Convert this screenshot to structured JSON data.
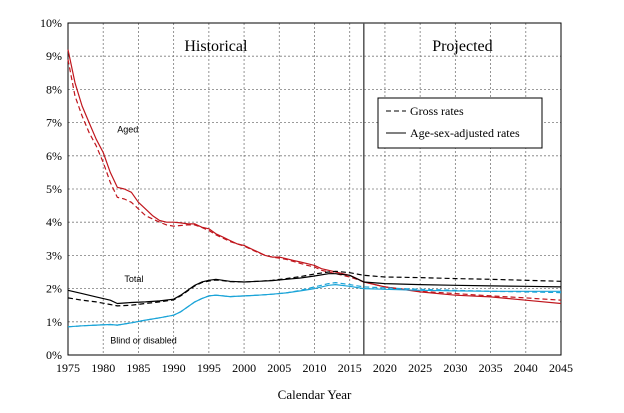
{
  "chart_data": {
    "type": "line",
    "title": "",
    "xlabel": "Calendar Year",
    "ylabel": "",
    "xlim": [
      1975,
      2045
    ],
    "ylim": [
      0,
      10
    ],
    "x_ticks": [
      "1975",
      "1980",
      "1985",
      "1990",
      "1995",
      "2000",
      "2005",
      "2010",
      "2015",
      "2020",
      "2025",
      "2030",
      "2035",
      "2040",
      "2045"
    ],
    "y_ticks": [
      "0%",
      "1%",
      "2%",
      "3%",
      "4%",
      "5%",
      "6%",
      "7%",
      "8%",
      "9%",
      "10%"
    ],
    "grid": true,
    "divider_year": 2017,
    "sections": [
      "Historical",
      "Projected"
    ],
    "legend": {
      "position": "top-right",
      "entries": [
        {
          "label": "Gross rates",
          "style": "dashed"
        },
        {
          "label": "Age-sex-adjusted rates",
          "style": "solid"
        }
      ]
    },
    "annotations": [
      {
        "text": "Aged",
        "x": 1982,
        "y": 6.7
      },
      {
        "text": "Total",
        "x": 1983,
        "y": 2.2
      },
      {
        "text": "Blind or disabled",
        "x": 1981,
        "y": 0.35
      }
    ],
    "colors": {
      "aged": "#c0161d",
      "total": "#000000",
      "blind_disabled": "#1ba4d8"
    },
    "series": [
      {
        "name": "Aged",
        "variant": "Age-sex-adjusted rates",
        "style": "solid",
        "color_key": "aged",
        "x": [
          1975,
          1976,
          1977,
          1978,
          1979,
          1980,
          1981,
          1982,
          1983,
          1984,
          1985,
          1986,
          1987,
          1988,
          1989,
          1990,
          1991,
          1992,
          1993,
          1994,
          1995,
          1996,
          1997,
          1998,
          1999,
          2000,
          2001,
          2002,
          2003,
          2004,
          2005,
          2006,
          2007,
          2008,
          2009,
          2010,
          2011,
          2012,
          2013,
          2014,
          2015,
          2016,
          2017,
          2020,
          2025,
          2030,
          2035,
          2040,
          2045
        ],
        "y": [
          9.2,
          8.2,
          7.5,
          7.0,
          6.5,
          6.1,
          5.5,
          5.05,
          5.0,
          4.9,
          4.6,
          4.4,
          4.2,
          4.05,
          4.0,
          4.0,
          3.98,
          3.95,
          3.95,
          3.85,
          3.8,
          3.65,
          3.55,
          3.45,
          3.35,
          3.3,
          3.2,
          3.1,
          3.0,
          2.95,
          2.95,
          2.9,
          2.85,
          2.8,
          2.75,
          2.7,
          2.6,
          2.55,
          2.5,
          2.45,
          2.4,
          2.3,
          2.2,
          2.05,
          1.9,
          1.8,
          1.75,
          1.65,
          1.55
        ]
      },
      {
        "name": "Aged",
        "variant": "Gross rates",
        "style": "dashed",
        "color_key": "aged",
        "x": [
          1975,
          1976,
          1977,
          1978,
          1979,
          1980,
          1981,
          1982,
          1983,
          1984,
          1985,
          1986,
          1987,
          1988,
          1989,
          1990,
          1991,
          1992,
          1993,
          1994,
          1995,
          1996,
          1997,
          1998,
          1999,
          2000,
          2001,
          2002,
          2003,
          2004,
          2005,
          2006,
          2007,
          2008,
          2009,
          2010,
          2011,
          2012,
          2013,
          2014,
          2015,
          2016,
          2017,
          2020,
          2025,
          2030,
          2035,
          2040,
          2045
        ],
        "y": [
          8.9,
          7.8,
          7.2,
          6.7,
          6.3,
          5.8,
          5.2,
          4.75,
          4.7,
          4.6,
          4.4,
          4.2,
          4.1,
          4.0,
          3.92,
          3.88,
          3.9,
          3.92,
          3.92,
          3.84,
          3.75,
          3.62,
          3.52,
          3.42,
          3.35,
          3.28,
          3.18,
          3.08,
          3.0,
          2.95,
          2.92,
          2.88,
          2.82,
          2.76,
          2.7,
          2.65,
          2.55,
          2.5,
          2.45,
          2.4,
          2.35,
          2.28,
          2.2,
          2.05,
          1.92,
          1.85,
          1.78,
          1.72,
          1.65
        ]
      },
      {
        "name": "Total",
        "variant": "Age-sex-adjusted rates",
        "style": "solid",
        "color_key": "total",
        "x": [
          1975,
          1977,
          1979,
          1981,
          1982,
          1984,
          1986,
          1988,
          1990,
          1991,
          1992,
          1993,
          1994,
          1995,
          1996,
          1997,
          1998,
          2000,
          2002,
          2004,
          2006,
          2008,
          2010,
          2012,
          2013,
          2015,
          2017,
          2020,
          2025,
          2030,
          2035,
          2040,
          2045
        ],
        "y": [
          1.95,
          1.85,
          1.75,
          1.65,
          1.55,
          1.58,
          1.6,
          1.63,
          1.68,
          1.8,
          1.95,
          2.1,
          2.2,
          2.25,
          2.28,
          2.25,
          2.22,
          2.2,
          2.22,
          2.24,
          2.28,
          2.32,
          2.38,
          2.45,
          2.45,
          2.4,
          2.2,
          2.15,
          2.12,
          2.1,
          2.08,
          2.07,
          2.05
        ]
      },
      {
        "name": "Total",
        "variant": "Gross rates",
        "style": "dashed",
        "color_key": "total",
        "x": [
          1975,
          1977,
          1979,
          1981,
          1982,
          1984,
          1986,
          1988,
          1990,
          1991,
          1992,
          1993,
          1994,
          1995,
          1996,
          1997,
          1998,
          2000,
          2002,
          2004,
          2006,
          2008,
          2010,
          2012,
          2013,
          2015,
          2017,
          2020,
          2025,
          2030,
          2035,
          2040,
          2045
        ],
        "y": [
          1.72,
          1.65,
          1.6,
          1.52,
          1.48,
          1.5,
          1.55,
          1.6,
          1.66,
          1.78,
          1.93,
          2.08,
          2.18,
          2.23,
          2.26,
          2.24,
          2.21,
          2.2,
          2.22,
          2.25,
          2.3,
          2.36,
          2.44,
          2.5,
          2.52,
          2.48,
          2.4,
          2.35,
          2.33,
          2.3,
          2.28,
          2.25,
          2.22
        ]
      },
      {
        "name": "Blind or disabled",
        "variant": "Age-sex-adjusted rates",
        "style": "solid",
        "color_key": "blind_disabled",
        "x": [
          1975,
          1977,
          1979,
          1981,
          1982,
          1984,
          1986,
          1988,
          1990,
          1991,
          1992,
          1993,
          1994,
          1995,
          1996,
          1997,
          1998,
          2000,
          2002,
          2004,
          2006,
          2008,
          2010,
          2012,
          2013,
          2015,
          2017,
          2020,
          2025,
          2030,
          2035,
          2040,
          2045
        ],
        "y": [
          0.85,
          0.88,
          0.9,
          0.92,
          0.9,
          0.97,
          1.05,
          1.12,
          1.2,
          1.3,
          1.45,
          1.6,
          1.7,
          1.78,
          1.8,
          1.78,
          1.76,
          1.78,
          1.8,
          1.83,
          1.87,
          1.93,
          2.0,
          2.1,
          2.12,
          2.07,
          2.0,
          1.98,
          1.95,
          1.93,
          1.92,
          1.92,
          1.92
        ]
      },
      {
        "name": "Blind or disabled",
        "variant": "Gross rates",
        "style": "dashed",
        "color_key": "blind_disabled",
        "x": [
          1975,
          1977,
          1979,
          1981,
          1982,
          1984,
          1986,
          1988,
          1990,
          1991,
          1992,
          1993,
          1994,
          1995,
          1996,
          1997,
          1998,
          2000,
          2002,
          2004,
          2006,
          2008,
          2010,
          2012,
          2013,
          2015,
          2017,
          2020,
          2025,
          2030,
          2035,
          2040,
          2045
        ],
        "y": [
          0.85,
          0.88,
          0.9,
          0.92,
          0.9,
          0.97,
          1.05,
          1.12,
          1.2,
          1.3,
          1.45,
          1.6,
          1.7,
          1.78,
          1.8,
          1.78,
          1.76,
          1.78,
          1.8,
          1.83,
          1.87,
          1.95,
          2.05,
          2.15,
          2.18,
          2.12,
          2.05,
          2.02,
          1.98,
          1.95,
          1.92,
          1.9,
          1.88
        ]
      }
    ]
  }
}
